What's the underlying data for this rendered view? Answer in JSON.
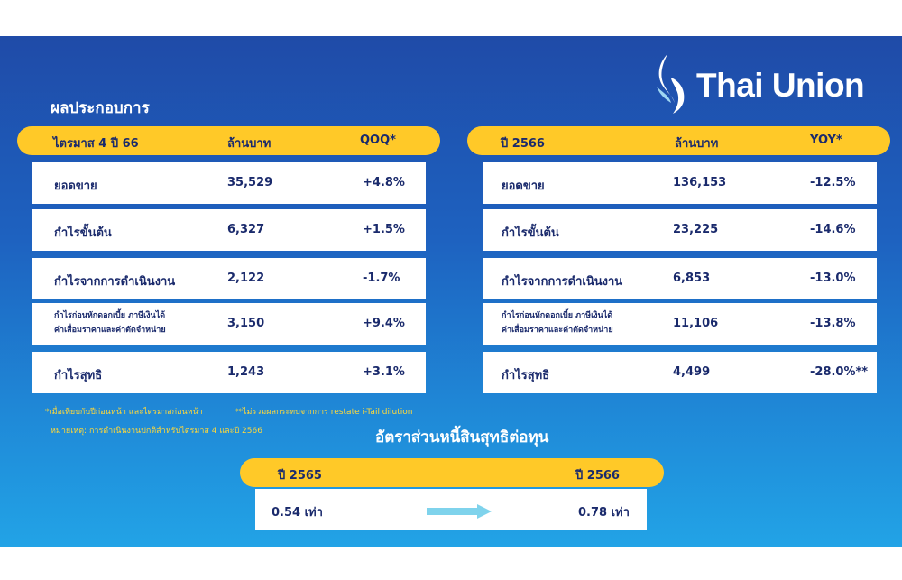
{
  "brand": {
    "name": "Thai Union"
  },
  "quarter": {
    "section_title": "ผลประกอบการ",
    "header": {
      "period": "ไตรมาส 4 ปี 66",
      "unit": "ล้านบาท",
      "change": "QOQ*"
    },
    "rows": [
      {
        "label": "ยอดขาย",
        "value": "35,529",
        "change": "+4.8%"
      },
      {
        "label": "กำไรขั้นต้น",
        "value": "6,327",
        "change": "+1.5%"
      },
      {
        "label": "กำไรจากการดำเนินงาน",
        "value": "2,122",
        "change": "-1.7%"
      },
      {
        "label_line1": "กำไรก่อนหักดอกเบี้ย ภาษีเงินได้",
        "label_line2": "ค่าเสื่อมราคาและค่าตัดจำหน่าย",
        "value": "3,150",
        "change": "+9.4%"
      },
      {
        "label": "กำไรสุทธิ",
        "value": "1,243",
        "change": "+3.1%"
      }
    ]
  },
  "year": {
    "header": {
      "period": "ปี 2566",
      "unit": "ล้านบาท",
      "change": "YOY*"
    },
    "rows": [
      {
        "label": "ยอดขาย",
        "value": "136,153",
        "change": "-12.5%"
      },
      {
        "label": "กำไรขั้นต้น",
        "value": "23,225",
        "change": "-14.6%"
      },
      {
        "label": "กำไรจากการดำเนินงาน",
        "value": "6,853",
        "change": "-13.0%"
      },
      {
        "label_line1": "กำไรก่อนหักดอกเบี้ย ภาษีเงินได้",
        "label_line2": "ค่าเสื่อมราคาและค่าตัดจำหน่าย",
        "value": "11,106",
        "change": "-13.8%"
      },
      {
        "label": "กำไรสุทธิ",
        "value": "4,499",
        "change": "-28.0%**"
      }
    ]
  },
  "notes": {
    "note1": "*เมื่อเทียบกับปีก่อนหน้า และไตรมาสก่อนหน้า",
    "note2": "**ไม่รวมผลกระทบจากการ restate i-Tail dilution",
    "note3": "หมายเหตุ: การดำเนินงานปกติสำหรับไตรมาส 4 และปี 2566"
  },
  "ratio": {
    "title": "อัตราส่วนหนี้สินสุทธิต่อทุน",
    "from_year": "ปี 2565",
    "to_year": "ปี 2566",
    "from_value": "0.54 เท่า",
    "to_value": "0.78 เท่า"
  },
  "colors": {
    "accent": "#ffc928",
    "text_dark": "#1a2a6c",
    "arrow": "#7fd3ec"
  }
}
